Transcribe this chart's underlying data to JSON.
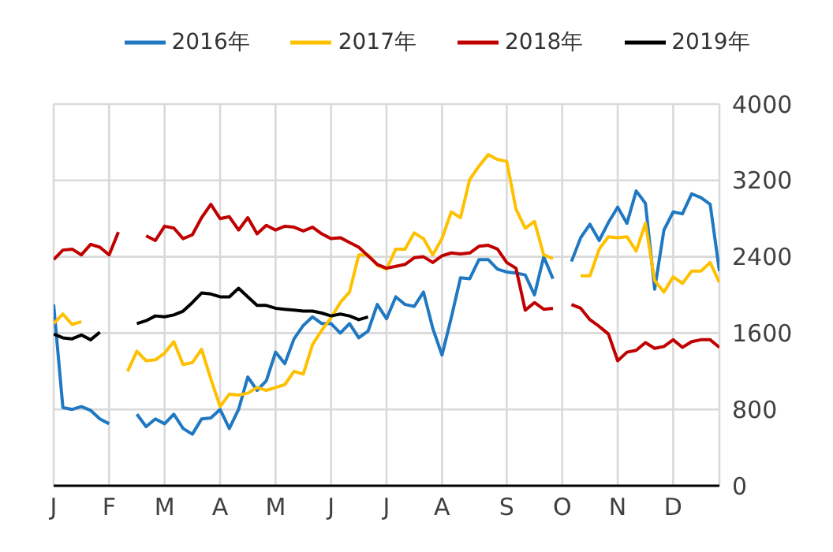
{
  "chart_data": {
    "type": "line",
    "categories": [
      "J",
      null,
      null,
      null,
      null,
      null,
      "F",
      null,
      null,
      null,
      null,
      null,
      "M",
      null,
      null,
      null,
      null,
      null,
      "A",
      null,
      null,
      null,
      null,
      null,
      "M",
      null,
      null,
      null,
      null,
      null,
      "J",
      null,
      null,
      null,
      null,
      null,
      "J",
      null,
      null,
      null,
      null,
      null,
      "A",
      null,
      null,
      null,
      null,
      null,
      null,
      "S",
      null,
      null,
      null,
      null,
      null,
      "O",
      null,
      null,
      null,
      null,
      null,
      "N",
      null,
      null,
      null,
      null,
      null,
      "D",
      null,
      null,
      null,
      null,
      null
    ],
    "ylim": [
      0,
      4000
    ],
    "yticks": [
      0,
      800,
      1600,
      2400,
      3200,
      4000
    ],
    "grid": true,
    "legend": "top",
    "line_style": "solid",
    "marker": "none",
    "series": [
      {
        "name": "2016年",
        "color": "#1f78c1",
        "values": [
          1900,
          820,
          800,
          830,
          790,
          700,
          650,
          null,
          null,
          750,
          620,
          700,
          650,
          750,
          600,
          540,
          700,
          710,
          800,
          600,
          800,
          1140,
          1000,
          1100,
          1400,
          1280,
          1540,
          1680,
          1770,
          1700,
          1700,
          1600,
          1700,
          1550,
          1620,
          1900,
          1750,
          1980,
          1900,
          1880,
          2030,
          1650,
          1370,
          1760,
          2180,
          2170,
          2370,
          2370,
          2270,
          2240,
          2230,
          2210,
          2000,
          2400,
          2170,
          null,
          2350,
          2600,
          2740,
          2570,
          2760,
          2920,
          2750,
          3090,
          2960,
          2060,
          2680,
          2870,
          2850,
          3060,
          3020,
          2950,
          2250
        ]
      },
      {
        "name": "2017年",
        "color": "#ffc000",
        "values": [
          1700,
          1800,
          1690,
          1720,
          null,
          null,
          null,
          null,
          1200,
          1410,
          1310,
          1320,
          1390,
          1510,
          1270,
          1290,
          1430,
          1120,
          830,
          960,
          950,
          970,
          1030,
          1000,
          1030,
          1060,
          1200,
          1170,
          1480,
          1630,
          1760,
          1920,
          2030,
          2420,
          2420,
          2310,
          2270,
          2480,
          2480,
          2650,
          2590,
          2420,
          2590,
          2870,
          2810,
          3210,
          3350,
          3470,
          3420,
          3400,
          2900,
          2700,
          2770,
          2420,
          2380,
          null,
          null,
          2200,
          2200,
          2480,
          2610,
          2600,
          2610,
          2460,
          2750,
          2150,
          2030,
          2190,
          2120,
          2250,
          2250,
          2340,
          2130
        ]
      },
      {
        "name": "2018年",
        "color": "#c00000",
        "values": [
          2370,
          2470,
          2480,
          2420,
          2530,
          2500,
          2420,
          2660,
          null,
          null,
          2620,
          2570,
          2720,
          2700,
          2590,
          2630,
          2810,
          2950,
          2800,
          2820,
          2680,
          2810,
          2640,
          2730,
          2680,
          2720,
          2710,
          2670,
          2710,
          2640,
          2590,
          2600,
          2550,
          2500,
          2410,
          2320,
          2280,
          2300,
          2320,
          2390,
          2400,
          2340,
          2410,
          2440,
          2430,
          2440,
          2510,
          2520,
          2480,
          2340,
          2280,
          1840,
          1920,
          1850,
          1860,
          null,
          1900,
          1860,
          1740,
          1670,
          1590,
          1310,
          1400,
          1420,
          1500,
          1440,
          1460,
          1530,
          1450,
          1510,
          1530,
          1530,
          1450
        ]
      },
      {
        "name": "2019年",
        "color": "#000000",
        "values": [
          1590,
          1550,
          1540,
          1580,
          1530,
          1610,
          null,
          null,
          null,
          1700,
          1730,
          1780,
          1770,
          1790,
          1830,
          1920,
          2020,
          2010,
          1980,
          1980,
          2070,
          1980,
          1890,
          1890,
          1860,
          1850,
          1840,
          1830,
          1830,
          1810,
          1780,
          1800,
          1780,
          1740,
          1770,
          null,
          null,
          null,
          null,
          null,
          null,
          null,
          null,
          null,
          null,
          null,
          null,
          null,
          null,
          null,
          null,
          null,
          null,
          null,
          null,
          null,
          null,
          null,
          null,
          null,
          null,
          null,
          null,
          null,
          null,
          null,
          null,
          null,
          null,
          null,
          null,
          null,
          null
        ]
      }
    ]
  }
}
